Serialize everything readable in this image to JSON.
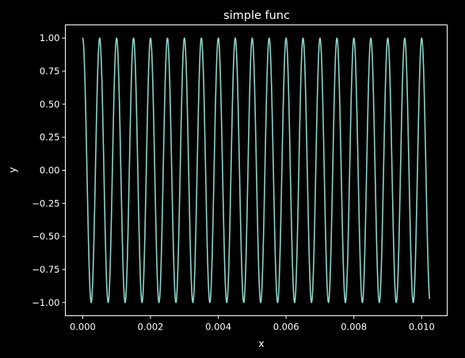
{
  "theme": {
    "background": "#000000",
    "foreground": "#ffffff",
    "series_color": "#8dd3c7"
  },
  "chart_data": {
    "type": "line",
    "title": "simple func",
    "xlabel": "x",
    "ylabel": "y",
    "grid": false,
    "legend": "none",
    "xlim": [
      -0.000512,
      0.010752
    ],
    "ylim": [
      -1.1,
      1.1
    ],
    "x_ticks": [
      {
        "value": 0.0,
        "label": "0.000"
      },
      {
        "value": 0.002,
        "label": "0.002"
      },
      {
        "value": 0.004,
        "label": "0.004"
      },
      {
        "value": 0.006,
        "label": "0.006"
      },
      {
        "value": 0.008,
        "label": "0.008"
      },
      {
        "value": 0.01,
        "label": "0.010"
      }
    ],
    "y_ticks": [
      {
        "value": 1.0,
        "label": "1.00"
      },
      {
        "value": 0.75,
        "label": "0.75"
      },
      {
        "value": 0.5,
        "label": "0.50"
      },
      {
        "value": 0.25,
        "label": "0.25"
      },
      {
        "value": 0.0,
        "label": "0.00"
      },
      {
        "value": -0.25,
        "label": "−0.25"
      },
      {
        "value": -0.5,
        "label": "−0.50"
      },
      {
        "value": -0.75,
        "label": "−0.75"
      },
      {
        "value": -1.0,
        "label": "−1.00"
      }
    ],
    "series": [
      {
        "function": "cos",
        "frequency_hz": 2000,
        "amplitude": 1.0,
        "x_start": 0.0,
        "x_end": 0.01023,
        "color": "#8dd3c7"
      }
    ]
  }
}
